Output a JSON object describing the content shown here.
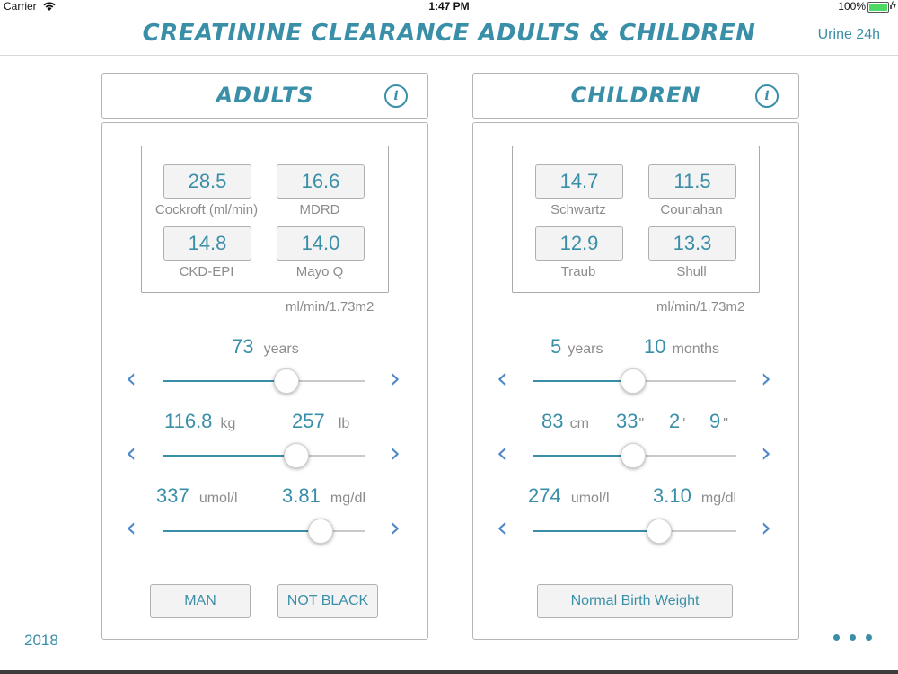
{
  "status": {
    "carrier": "Carrier",
    "time": "1:47 PM",
    "battery": "100%"
  },
  "header": {
    "title": "CREATININE CLEARANCE ADULTS & CHILDREN",
    "urine_link": "Urine 24h"
  },
  "adults": {
    "title": "ADULTS",
    "info": "i",
    "results": [
      {
        "value": "28.5",
        "label": "Cockroft (ml/min)"
      },
      {
        "value": "16.6",
        "label": "MDRD"
      },
      {
        "value": "14.8",
        "label": "CKD-EPI"
      },
      {
        "value": "14.0",
        "label": "Mayo Q"
      }
    ],
    "unit_note": "ml/min/1.73m2",
    "age": {
      "value": "73",
      "unit": "years",
      "slider_fraction": 0.61
    },
    "weight": {
      "kg": "116.8",
      "kg_unit": "kg",
      "lb": "257",
      "lb_unit": "lb",
      "slider_fraction": 0.66
    },
    "creatinine": {
      "umol": "337",
      "umol_unit": "umol/l",
      "mgdl": "3.81",
      "mgdl_unit": "mg/dl",
      "slider_fraction": 0.78
    },
    "sex_button": "MAN",
    "race_button": "NOT BLACK"
  },
  "children": {
    "title": "CHILDREN",
    "info": "i",
    "results": [
      {
        "value": "14.7",
        "label": "Schwartz"
      },
      {
        "value": "11.5",
        "label": "Counahan"
      },
      {
        "value": "12.9",
        "label": "Traub"
      },
      {
        "value": "13.3",
        "label": "Shull"
      }
    ],
    "unit_note": "ml/min/1.73m2",
    "age": {
      "years": "5",
      "years_unit": "years",
      "months": "10",
      "months_unit": "months",
      "slider_fraction": 0.49
    },
    "height": {
      "cm": "83",
      "cm_unit": "cm",
      "inches_total": "33",
      "inch_mark": "\"",
      "feet": "2",
      "foot_mark": "'",
      "inches": "9",
      "inch_mark2": "\"",
      "slider_fraction": 0.49
    },
    "creatinine": {
      "umol": "274",
      "umol_unit": "umol/l",
      "mgdl": "3.10",
      "mgdl_unit": "mg/dl",
      "slider_fraction": 0.62
    },
    "birth_weight_button": "Normal Birth Weight"
  },
  "footer": {
    "year": "2018"
  },
  "colors": {
    "accent": "#3a8fa8",
    "chevron": "#4f88c9"
  }
}
